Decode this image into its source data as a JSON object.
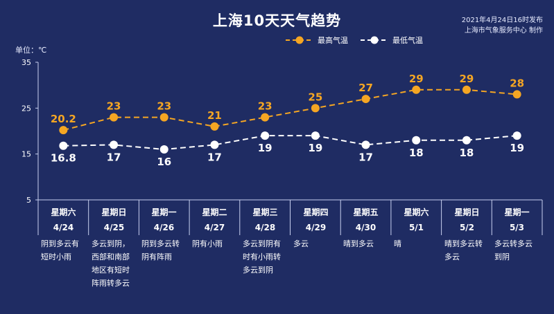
{
  "header": {
    "title": "上海10天天气趋势",
    "publish_time": "2021年4月24日16时发布",
    "publisher": "上海市气象服务中心 制作",
    "unit": "单位：℃"
  },
  "legend": {
    "high_label": "最高气温",
    "low_label": "最低气温",
    "placement": "top-right"
  },
  "colors": {
    "background": "#1f2c63",
    "high": "#f5a623",
    "low": "#ffffff",
    "axis": "#c9d1f0"
  },
  "chart_data": {
    "type": "line",
    "title": "上海10天天气趋势",
    "ylabel": "单位：℃",
    "ylim": [
      5,
      35
    ],
    "yticks": [
      "35",
      "25",
      "15",
      "5"
    ],
    "grid": false,
    "categories": [
      "4/24",
      "4/25",
      "4/26",
      "4/27",
      "4/28",
      "4/29",
      "4/30",
      "5/1",
      "5/2",
      "5/3"
    ],
    "series": [
      {
        "name": "最高气温",
        "values": [
          20.2,
          23,
          23,
          21,
          23,
          25,
          27,
          29,
          29,
          28
        ],
        "labels": [
          "20.2",
          "23",
          "23",
          "21",
          "23",
          "25",
          "27",
          "29",
          "29",
          "28"
        ],
        "color": "#f5a623"
      },
      {
        "name": "最低气温",
        "values": [
          16.8,
          17,
          16,
          17,
          19,
          19,
          17,
          18,
          18,
          19
        ],
        "labels": [
          "16.8",
          "17",
          "16",
          "17",
          "19",
          "19",
          "17",
          "18",
          "18",
          "19"
        ],
        "color": "#ffffff"
      }
    ]
  },
  "days": [
    {
      "weekday": "星期六",
      "date": "4/24",
      "weather": [
        "阴到多云有",
        "短时小雨"
      ]
    },
    {
      "weekday": "星期日",
      "date": "4/25",
      "weather": [
        "多云到阴，",
        "西部和南部",
        "地区有短时",
        "阵雨转多云"
      ]
    },
    {
      "weekday": "星期一",
      "date": "4/26",
      "weather": [
        "阴到多云转",
        "阴有阵雨"
      ]
    },
    {
      "weekday": "星期二",
      "date": "4/27",
      "weather": [
        "阴有小雨"
      ]
    },
    {
      "weekday": "星期三",
      "date": "4/28",
      "weather": [
        "多云到阴有",
        "时有小雨转",
        "多云到阴"
      ]
    },
    {
      "weekday": "星期四",
      "date": "4/29",
      "weather": [
        "多云"
      ]
    },
    {
      "weekday": "星期五",
      "date": "4/30",
      "weather": [
        "晴到多云"
      ]
    },
    {
      "weekday": "星期六",
      "date": "5/1",
      "weather": [
        "晴"
      ]
    },
    {
      "weekday": "星期日",
      "date": "5/2",
      "weather": [
        "晴到多云转",
        "多云"
      ]
    },
    {
      "weekday": "星期一",
      "date": "5/3",
      "weather": [
        "多云转多云",
        "到阴"
      ]
    }
  ]
}
